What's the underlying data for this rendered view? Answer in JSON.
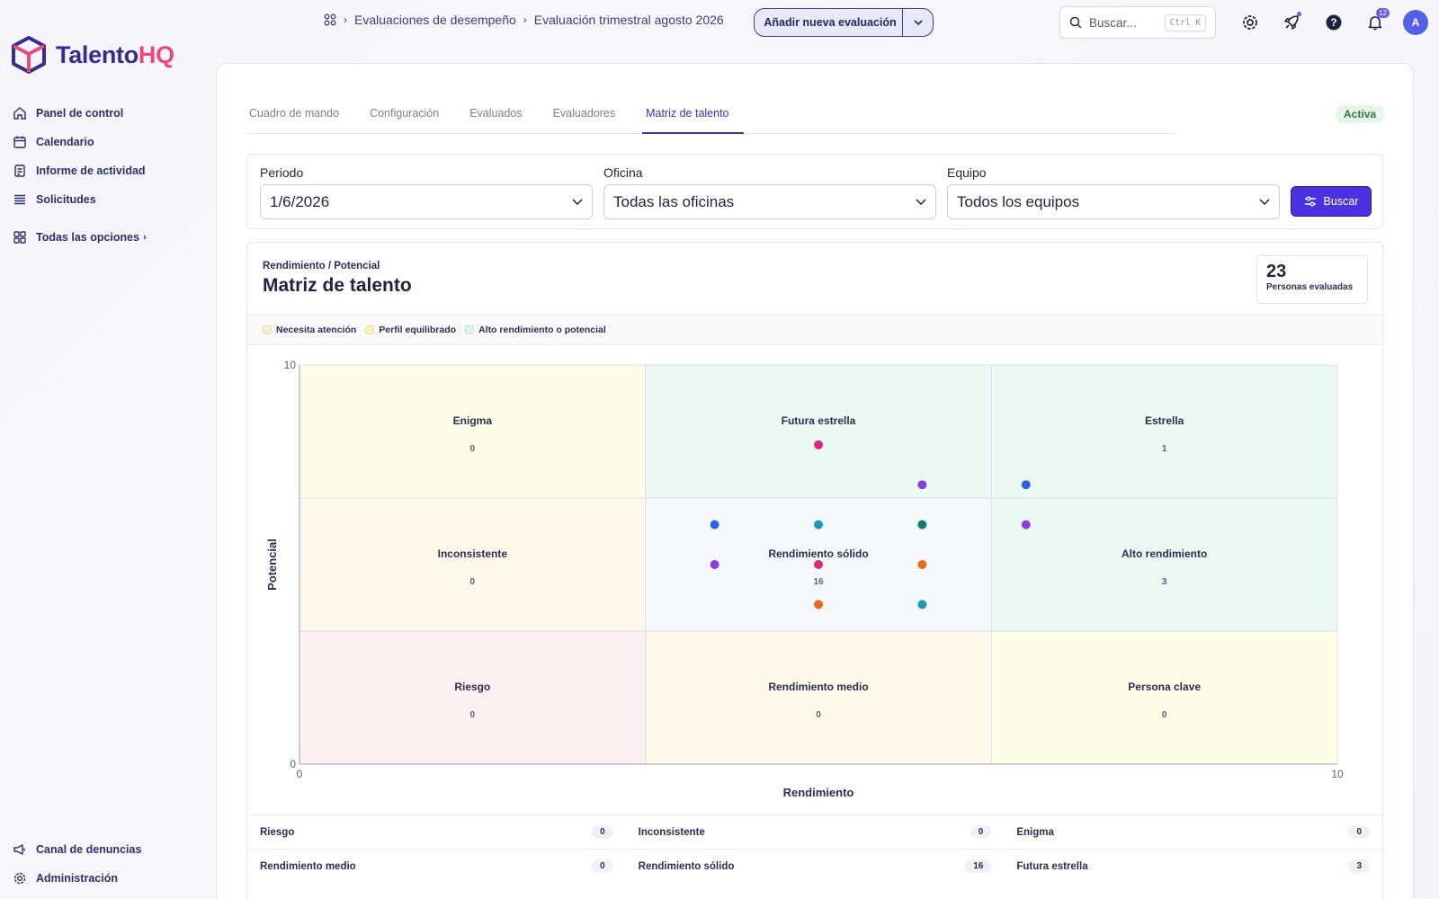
{
  "brand": {
    "name_main": "Talento",
    "name_accent": "HQ"
  },
  "sidebar": {
    "items": [
      {
        "label": "Panel de control",
        "icon": "home-icon"
      },
      {
        "label": "Calendario",
        "icon": "calendar-icon"
      },
      {
        "label": "Informe de actividad",
        "icon": "report-icon"
      },
      {
        "label": "Solicitudes",
        "icon": "list-icon"
      }
    ],
    "all_options": "Todas las opciones",
    "bottom": [
      {
        "label": "Canal de denuncias",
        "icon": "megaphone-icon"
      },
      {
        "label": "Administración",
        "icon": "gear-icon"
      }
    ]
  },
  "header": {
    "breadcrumbs": [
      "Evaluaciones de desempeño",
      "Evaluación trimestral agosto 2026"
    ],
    "add_button": "Añadir nueva evaluación",
    "search_placeholder": "Buscar...",
    "search_shortcut": "Ctrl K",
    "notifications_count": "12",
    "avatar_initial": "A"
  },
  "tabs": [
    {
      "label": "Cuadro de mando",
      "active": false
    },
    {
      "label": "Configuración",
      "active": false
    },
    {
      "label": "Evaluados",
      "active": false
    },
    {
      "label": "Evaluadores",
      "active": false
    },
    {
      "label": "Matriz de talento",
      "active": true
    }
  ],
  "status": "Activa",
  "filters": {
    "period": {
      "label": "Periodo",
      "value": "1/6/2026"
    },
    "office": {
      "label": "Oficina",
      "value": "Todas las oficinas"
    },
    "team": {
      "label": "Equipo",
      "value": "Todos los equipos"
    },
    "search_button": "Buscar"
  },
  "matrix": {
    "subtitle": "Rendimiento / Potencial",
    "title": "Matriz de talento",
    "count": "23",
    "count_label": "Personas evaluadas",
    "legend": [
      {
        "label": "Necesita atención",
        "color": "#fdebd0"
      },
      {
        "label": "Perfil equilibrado",
        "color": "#fdf3c4"
      },
      {
        "label": "Alto rendimiento o potencial",
        "color": "#dff5ec"
      }
    ]
  },
  "chart_data": {
    "type": "scatter",
    "xlabel": "Rendimiento",
    "ylabel": "Potencial",
    "xlim": [
      0,
      10
    ],
    "ylim": [
      0,
      10
    ],
    "x_ticks": [
      "0",
      "10"
    ],
    "y_ticks": [
      "0",
      "10"
    ],
    "cells": [
      {
        "name": "Enigma",
        "col": 0,
        "row": 2,
        "count": "0",
        "color": "#fefbe6"
      },
      {
        "name": "Futura estrella",
        "col": 1,
        "row": 2,
        "count": "",
        "color": "#eafaf3"
      },
      {
        "name": "Estrella",
        "col": 2,
        "row": 2,
        "count": "1",
        "color": "#eafaf3"
      },
      {
        "name": "Inconsistente",
        "col": 0,
        "row": 1,
        "count": "0",
        "color": "#fef8ea"
      },
      {
        "name": "Rendimiento sólido",
        "col": 1,
        "row": 1,
        "count": "16",
        "color": "#f5f8fb"
      },
      {
        "name": "Alto rendimiento",
        "col": 2,
        "row": 1,
        "count": "3",
        "color": "#eafaf3"
      },
      {
        "name": "Riesgo",
        "col": 0,
        "row": 0,
        "count": "0",
        "color": "#fdf0f0"
      },
      {
        "name": "Rendimiento medio",
        "col": 1,
        "row": 0,
        "count": "0",
        "color": "#fef8ea"
      },
      {
        "name": "Persona clave",
        "col": 2,
        "row": 0,
        "count": "0",
        "color": "#fefbe6"
      }
    ],
    "points": [
      {
        "x": 5.0,
        "y": 8.0,
        "color": "#e0287a"
      },
      {
        "x": 6.0,
        "y": 7.0,
        "color": "#8a3ee0"
      },
      {
        "x": 7.0,
        "y": 7.0,
        "color": "#2a62e0"
      },
      {
        "x": 4.0,
        "y": 6.0,
        "color": "#2a62e0"
      },
      {
        "x": 5.0,
        "y": 6.0,
        "color": "#1a9ab8"
      },
      {
        "x": 6.0,
        "y": 6.0,
        "color": "#127a70"
      },
      {
        "x": 7.0,
        "y": 6.0,
        "color": "#8a3ee0"
      },
      {
        "x": 4.0,
        "y": 5.0,
        "color": "#8a3ee0"
      },
      {
        "x": 5.0,
        "y": 5.0,
        "color": "#e0287a"
      },
      {
        "x": 6.0,
        "y": 5.0,
        "color": "#e86a1a"
      },
      {
        "x": 5.0,
        "y": 4.0,
        "color": "#e86a1a"
      },
      {
        "x": 6.0,
        "y": 4.0,
        "color": "#1a9ab8"
      }
    ]
  },
  "summary": [
    [
      {
        "name": "Riesgo",
        "count": "0"
      },
      {
        "name": "Inconsistente",
        "count": "0"
      },
      {
        "name": "Enigma",
        "count": "0"
      }
    ],
    [
      {
        "name": "Rendimiento medio",
        "count": "0"
      },
      {
        "name": "Rendimiento sólido",
        "count": "16"
      },
      {
        "name": "Futura estrella",
        "count": "3"
      }
    ]
  ]
}
